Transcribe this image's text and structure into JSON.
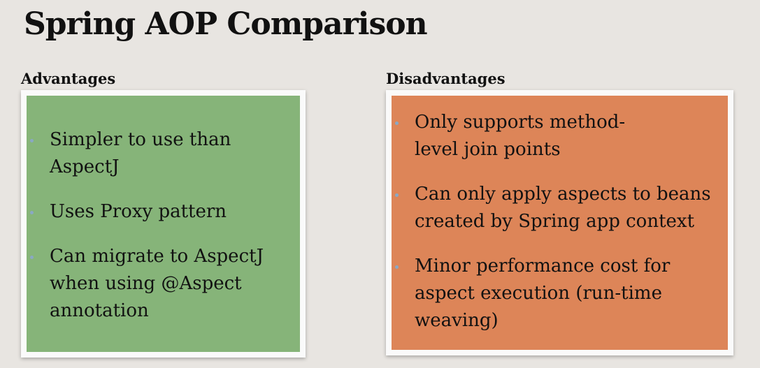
{
  "slide": {
    "title": "Spring AOP Comparison"
  },
  "advantages": {
    "heading": "Advantages",
    "items": [
      "Simpler to use than AspectJ",
      "Uses Proxy pattern",
      "Can migrate to AspectJ when using @Aspect annotation"
    ],
    "panel_color": "#86b479"
  },
  "disadvantages": {
    "heading": "Disadvantages",
    "items": [
      "Only supports method-level join points",
      "Can only apply aspects to beans created by Spring app context",
      "Minor performance cost for aspect execution (run-time weaving)"
    ],
    "panel_color": "#dd8558"
  },
  "colors": {
    "background": "#e8e5e1",
    "bullet_dot": "#8aa8c4"
  }
}
